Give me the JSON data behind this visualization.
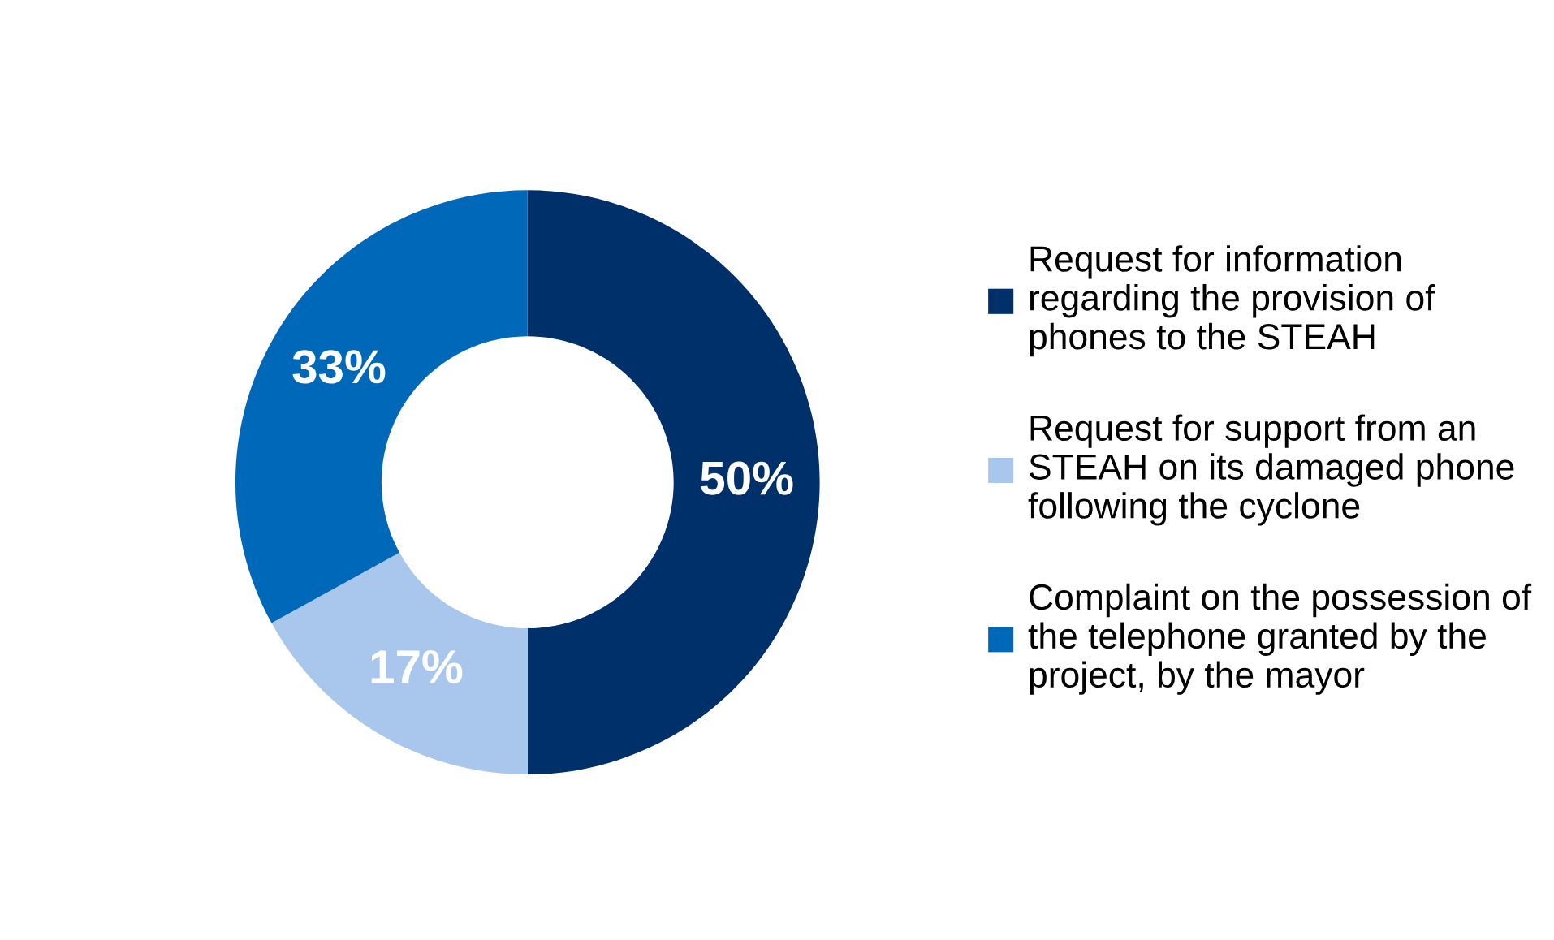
{
  "chart_data": {
    "type": "donut",
    "categories": [
      "Request for information regarding the provision of phones to the STEAH",
      "Request for support from an STEAH on its damaged phone following the cyclone",
      "Complaint on the possession of the telephone granted by the project, by the mayor"
    ],
    "values": [
      50,
      17,
      33
    ],
    "colors": [
      "#003069",
      "#a9c7ec",
      "#0068b8"
    ],
    "value_labels": [
      "50%",
      "17%",
      "33%"
    ],
    "legend": "right"
  }
}
